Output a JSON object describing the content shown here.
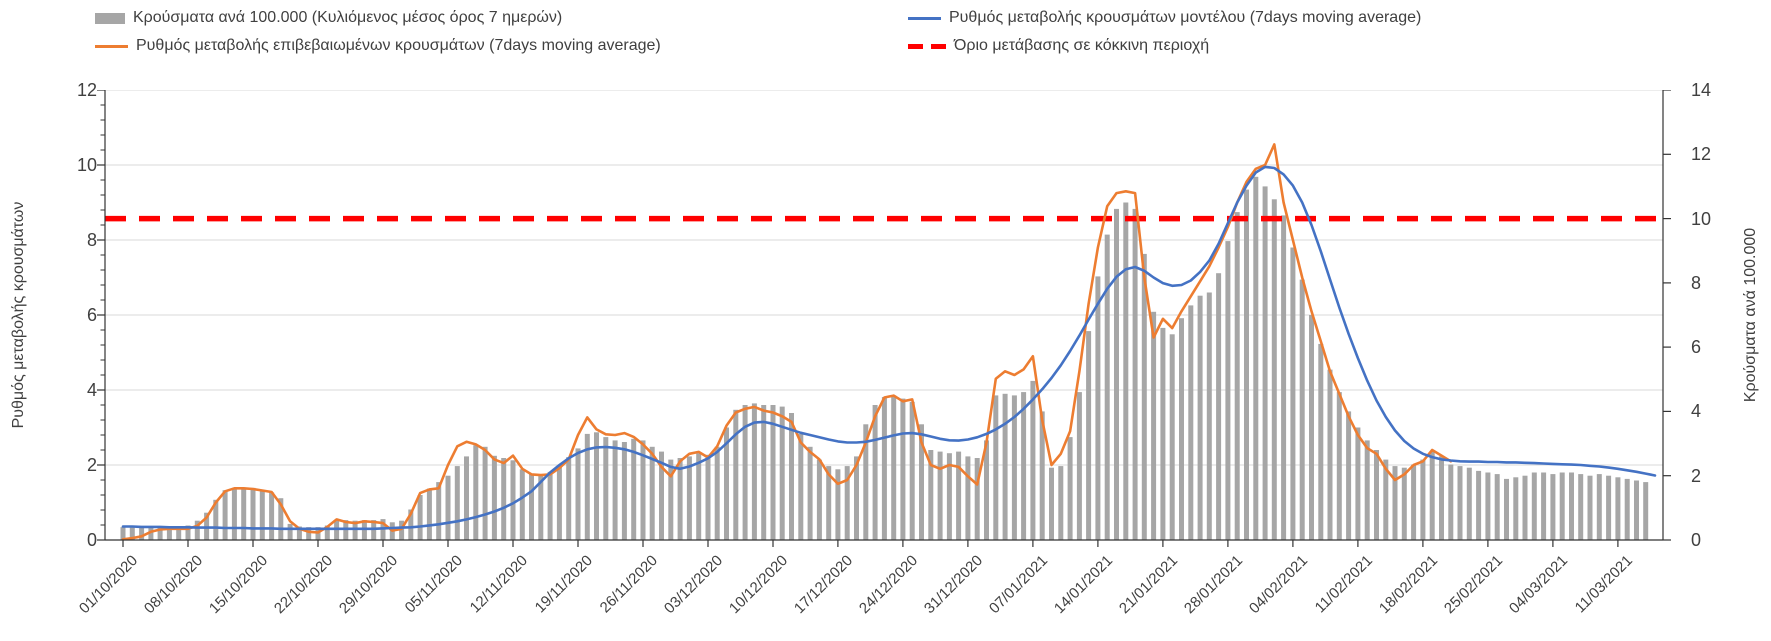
{
  "legend": {
    "position": "top",
    "items": [
      {
        "label": "Κρούσματα ανά 100.000 (Κυλιόμενος μέσος όρος 7 ημερών)",
        "swatch": "bar",
        "color": "#A6A6A6"
      },
      {
        "label": "Ρυθμός μεταβολής επιβεβαιωμένων κρουσμάτων (7days moving average)",
        "swatch": "line",
        "color": "#ED7D31"
      },
      {
        "label": "Ρυθμός μεταβολής κρουσμάτων μοντέλου (7days moving average)",
        "swatch": "line",
        "color": "#4472C4"
      },
      {
        "label": "Όριο μετάβασης σε κόκκινη περιοχή",
        "swatch": "dash",
        "color": "#FF0000"
      }
    ]
  },
  "chart_data": {
    "type": "combo-bar-line",
    "x_frequency": "daily",
    "x_start_date": "01/10/2020",
    "x_end_date": "14/03/2021",
    "x_tick_labels": [
      "01/10/2020",
      "08/10/2020",
      "15/10/2020",
      "22/10/2020",
      "29/10/2020",
      "05/11/2020",
      "12/11/2020",
      "19/11/2020",
      "26/11/2020",
      "03/12/2020",
      "10/12/2020",
      "17/12/2020",
      "24/12/2020",
      "31/12/2020",
      "07/01/2021",
      "14/01/2021",
      "21/01/2021",
      "28/01/2021",
      "04/02/2021",
      "11/02/2021",
      "18/02/2021",
      "25/02/2021",
      "04/03/2021",
      "11/03/2021"
    ],
    "grid": true,
    "gridline_color": "#D9D9D9",
    "left_axis": {
      "title": "Ρυθμός μεταβολής κρουσμάτων",
      "min": 0,
      "max": 12,
      "step": 2,
      "minor_step": 0.4,
      "tick_labels": [
        "0",
        "2",
        "4",
        "6",
        "8",
        "10",
        "12"
      ]
    },
    "right_axis": {
      "title": "Κρούσματα ανά 100.000",
      "min": 0,
      "max": 14,
      "step": 2,
      "tick_labels": [
        "0",
        "2",
        "4",
        "6",
        "8",
        "10",
        "12",
        "14"
      ]
    },
    "threshold": {
      "label": "Όριο μετάβασης σε κόκκινη περιοχή",
      "axis": "right",
      "value": 10,
      "color": "#FF0000",
      "style": "dashed"
    },
    "series": [
      {
        "name": "Κρούσματα ανά 100.000 (Κυλιόμενος μέσος όρος 7 ημερών)",
        "type": "bar",
        "axis": "right",
        "color": "#A6A6A6",
        "values": [
          0.4,
          0.4,
          0.42,
          0.38,
          0.4,
          0.42,
          0.4,
          0.45,
          0.6,
          0.85,
          1.25,
          1.55,
          1.62,
          1.62,
          1.62,
          1.55,
          1.48,
          1.3,
          0.5,
          0.42,
          0.4,
          0.4,
          0.45,
          0.6,
          0.62,
          0.6,
          0.62,
          0.62,
          0.65,
          0.55,
          0.6,
          0.95,
          1.4,
          1.6,
          1.8,
          2.0,
          2.3,
          2.6,
          2.95,
          2.9,
          2.62,
          2.55,
          2.48,
          2.2,
          2.05,
          2.05,
          2.12,
          2.32,
          2.58,
          2.85,
          3.3,
          3.35,
          3.2,
          3.1,
          3.05,
          3.15,
          3.1,
          2.9,
          2.75,
          2.5,
          2.55,
          2.6,
          2.7,
          2.65,
          2.9,
          3.5,
          4.05,
          4.2,
          4.25,
          4.2,
          4.2,
          4.15,
          3.95,
          3.3,
          2.9,
          2.5,
          2.3,
          2.2,
          2.3,
          2.6,
          3.6,
          4.2,
          4.45,
          4.5,
          4.4,
          4.3,
          3.6,
          2.8,
          2.75,
          2.7,
          2.75,
          2.6,
          2.55,
          3.1,
          4.5,
          4.55,
          4.5,
          4.6,
          4.95,
          4.0,
          2.25,
          2.3,
          3.2,
          4.6,
          6.5,
          8.2,
          9.5,
          10.3,
          10.5,
          10.3,
          8.9,
          7.1,
          6.6,
          6.4,
          6.9,
          7.3,
          7.6,
          7.7,
          8.3,
          9.3,
          10.2,
          10.9,
          11.3,
          11.0,
          10.6,
          10.1,
          9.1,
          8.1,
          7.0,
          6.1,
          5.3,
          4.6,
          4.0,
          3.5,
          3.1,
          2.8,
          2.5,
          2.3,
          2.25,
          2.35,
          2.5,
          2.75,
          2.6,
          2.35,
          2.3,
          2.25,
          2.15,
          2.1,
          2.05,
          1.9,
          1.95,
          2.0,
          2.1,
          2.1,
          2.05,
          2.1,
          2.1,
          2.05,
          2.0,
          2.05,
          2.0,
          1.95,
          1.9,
          1.85,
          1.8
        ]
      },
      {
        "name": "Ρυθμός μεταβολής επιβεβαιωμένων κρουσμάτων (7days moving average)",
        "type": "line",
        "axis": "left",
        "color": "#ED7D31",
        "values": [
          0.02,
          0.05,
          0.1,
          0.22,
          0.28,
          0.3,
          0.3,
          0.3,
          0.38,
          0.6,
          1.0,
          1.3,
          1.38,
          1.38,
          1.36,
          1.32,
          1.28,
          0.95,
          0.5,
          0.3,
          0.22,
          0.2,
          0.35,
          0.55,
          0.48,
          0.45,
          0.5,
          0.48,
          0.45,
          0.25,
          0.3,
          0.7,
          1.25,
          1.35,
          1.38,
          2.0,
          2.5,
          2.62,
          2.55,
          2.4,
          2.15,
          2.05,
          2.25,
          1.9,
          1.75,
          1.73,
          1.75,
          1.92,
          2.15,
          2.8,
          3.27,
          2.95,
          2.82,
          2.8,
          2.85,
          2.75,
          2.55,
          2.3,
          1.95,
          1.7,
          2.1,
          2.3,
          2.35,
          2.2,
          2.5,
          3.05,
          3.4,
          3.5,
          3.55,
          3.45,
          3.4,
          3.3,
          3.15,
          2.6,
          2.35,
          2.15,
          1.75,
          1.5,
          1.6,
          2.0,
          2.6,
          3.3,
          3.8,
          3.85,
          3.7,
          3.75,
          2.6,
          2.0,
          1.9,
          2.0,
          1.95,
          1.7,
          1.48,
          2.6,
          4.3,
          4.5,
          4.4,
          4.55,
          4.9,
          3.2,
          2.0,
          2.3,
          2.9,
          4.5,
          6.3,
          7.8,
          8.9,
          9.25,
          9.3,
          9.25,
          7.0,
          5.4,
          5.9,
          5.65,
          6.1,
          6.5,
          6.9,
          7.3,
          7.8,
          8.35,
          9.0,
          9.55,
          9.9,
          10.0,
          10.55,
          9.0,
          8.0,
          7.0,
          6.1,
          5.3,
          4.5,
          3.9,
          3.3,
          2.8,
          2.45,
          2.3,
          1.9,
          1.6,
          1.75,
          2.0,
          2.1,
          2.4,
          2.25,
          2.1
        ]
      },
      {
        "name": "Ρυθμός μεταβολής κρουσμάτων μοντέλου (7days moving average)",
        "type": "line",
        "axis": "left",
        "color": "#4472C4",
        "values": [
          0.36,
          0.36,
          0.35,
          0.35,
          0.35,
          0.34,
          0.34,
          0.34,
          0.33,
          0.33,
          0.33,
          0.32,
          0.32,
          0.32,
          0.31,
          0.31,
          0.31,
          0.3,
          0.3,
          0.3,
          0.3,
          0.3,
          0.3,
          0.3,
          0.3,
          0.3,
          0.3,
          0.3,
          0.31,
          0.32,
          0.33,
          0.34,
          0.36,
          0.39,
          0.42,
          0.46,
          0.5,
          0.55,
          0.61,
          0.68,
          0.76,
          0.86,
          0.98,
          1.13,
          1.3,
          1.55,
          1.8,
          2.0,
          2.18,
          2.32,
          2.42,
          2.47,
          2.48,
          2.46,
          2.42,
          2.35,
          2.26,
          2.16,
          2.06,
          1.95,
          1.9,
          1.96,
          2.06,
          2.18,
          2.35,
          2.58,
          2.82,
          3.02,
          3.13,
          3.15,
          3.1,
          3.02,
          2.94,
          2.86,
          2.8,
          2.74,
          2.68,
          2.63,
          2.6,
          2.6,
          2.62,
          2.67,
          2.73,
          2.79,
          2.84,
          2.85,
          2.82,
          2.76,
          2.7,
          2.66,
          2.65,
          2.68,
          2.74,
          2.83,
          2.95,
          3.1,
          3.28,
          3.5,
          3.75,
          4.02,
          4.32,
          4.66,
          5.04,
          5.45,
          5.88,
          6.3,
          6.7,
          7.02,
          7.22,
          7.28,
          7.18,
          7.0,
          6.85,
          6.78,
          6.8,
          6.92,
          7.15,
          7.45,
          7.9,
          8.45,
          9.0,
          9.45,
          9.8,
          9.95,
          9.92,
          9.75,
          9.45,
          9.0,
          8.4,
          7.7,
          6.95,
          6.2,
          5.5,
          4.85,
          4.25,
          3.72,
          3.28,
          2.92,
          2.64,
          2.44,
          2.3,
          2.21,
          2.15,
          2.12,
          2.1,
          2.09,
          2.09,
          2.08,
          2.08,
          2.07,
          2.07,
          2.06,
          2.05,
          2.04,
          2.03,
          2.02,
          2.01,
          2.0,
          1.98,
          1.96,
          1.93,
          1.9,
          1.86,
          1.82,
          1.77,
          1.72
        ]
      }
    ]
  }
}
